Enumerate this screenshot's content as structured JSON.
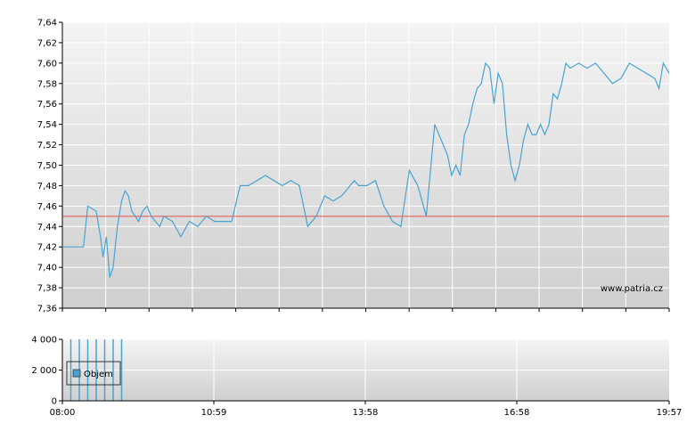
{
  "chart_data": [
    {
      "type": "line",
      "title": "",
      "xlabel": "",
      "ylabel": "",
      "watermark": "www.patria.cz",
      "ylim": [
        7.36,
        7.64
      ],
      "y_ticks": [
        "7,64",
        "7,62",
        "7,60",
        "7,58",
        "7,56",
        "7,54",
        "7,52",
        "7,50",
        "7,48",
        "7,46",
        "7,44",
        "7,42",
        "7,40",
        "7,38",
        "7,36"
      ],
      "x_ticks": [
        "08:00",
        "10:59",
        "13:58",
        "16:58",
        "19:57"
      ],
      "reference_line": 7.45,
      "colors": {
        "line": "#4aa3d0",
        "reference": "#e05050",
        "grid": "#ffffff",
        "axis": "#000000"
      },
      "grid": true,
      "series": [
        {
          "x": [
            "08:00",
            "08:25",
            "08:30",
            "08:40",
            "08:45",
            "08:48",
            "08:52",
            "08:56",
            "09:00",
            "09:05",
            "09:10",
            "09:14",
            "09:18",
            "09:22",
            "09:26",
            "09:30",
            "09:35",
            "09:40",
            "09:45",
            "09:50",
            "09:55",
            "10:00",
            "10:10",
            "10:20",
            "10:30",
            "10:40",
            "10:50",
            "11:00",
            "11:10",
            "11:20",
            "11:30",
            "11:40",
            "11:50",
            "12:00",
            "12:10",
            "12:20",
            "12:30",
            "12:40",
            "12:50",
            "13:00",
            "13:10",
            "13:20",
            "13:30",
            "13:35",
            "13:40",
            "13:45",
            "13:50",
            "14:00",
            "14:10",
            "14:20",
            "14:30",
            "14:40",
            "14:50",
            "15:00",
            "15:10",
            "15:20",
            "15:30",
            "15:35",
            "15:40",
            "15:45",
            "15:50",
            "15:55",
            "16:00",
            "16:05",
            "16:10",
            "16:15",
            "16:20",
            "16:25",
            "16:30",
            "16:35",
            "16:40",
            "16:45",
            "16:50",
            "16:55",
            "17:00",
            "17:05",
            "17:10",
            "17:15",
            "17:20",
            "17:25",
            "17:30",
            "17:35",
            "17:40",
            "17:45",
            "17:50",
            "17:55",
            "18:00",
            "18:10",
            "18:20",
            "18:30",
            "18:40",
            "18:50",
            "19:00",
            "19:10",
            "19:20",
            "19:30",
            "19:40",
            "19:45",
            "19:50",
            "19:57"
          ],
          "y": [
            7.42,
            7.42,
            7.46,
            7.455,
            7.43,
            7.41,
            7.43,
            7.39,
            7.4,
            7.44,
            7.465,
            7.475,
            7.47,
            7.455,
            7.45,
            7.445,
            7.455,
            7.46,
            7.45,
            7.445,
            7.44,
            7.45,
            7.445,
            7.43,
            7.445,
            7.44,
            7.45,
            7.445,
            7.445,
            7.445,
            7.48,
            7.48,
            7.485,
            7.49,
            7.485,
            7.48,
            7.485,
            7.48,
            7.44,
            7.45,
            7.47,
            7.465,
            7.47,
            7.475,
            7.48,
            7.485,
            7.48,
            7.48,
            7.485,
            7.46,
            7.445,
            7.44,
            7.495,
            7.48,
            7.45,
            7.54,
            7.52,
            7.51,
            7.49,
            7.5,
            7.49,
            7.53,
            7.54,
            7.56,
            7.575,
            7.58,
            7.6,
            7.595,
            7.56,
            7.59,
            7.58,
            7.53,
            7.5,
            7.485,
            7.5,
            7.525,
            7.54,
            7.53,
            7.53,
            7.54,
            7.53,
            7.54,
            7.57,
            7.565,
            7.58,
            7.6,
            7.595,
            7.6,
            7.595,
            7.6,
            7.59,
            7.58,
            7.585,
            7.6,
            7.595,
            7.59,
            7.585,
            7.575,
            7.6,
            7.59
          ]
        }
      ]
    },
    {
      "type": "bar",
      "title": "",
      "xlabel": "",
      "ylabel": "",
      "ylim": [
        0,
        4000
      ],
      "y_ticks": [
        "4 000",
        "2 000",
        "0"
      ],
      "x_ticks": [
        "08:00",
        "10:59",
        "13:58",
        "16:58",
        "19:57"
      ],
      "legend": {
        "position": "top-left",
        "label": "Objem"
      },
      "colors": {
        "bar": "#4aa3d0"
      },
      "series": [
        {
          "name": "Objem",
          "x": [
            "08:10",
            "08:20",
            "08:30",
            "08:40",
            "08:50",
            "09:00",
            "09:10"
          ],
          "values": [
            4000,
            4000,
            4000,
            4000,
            4000,
            4000,
            4000
          ]
        }
      ]
    }
  ]
}
